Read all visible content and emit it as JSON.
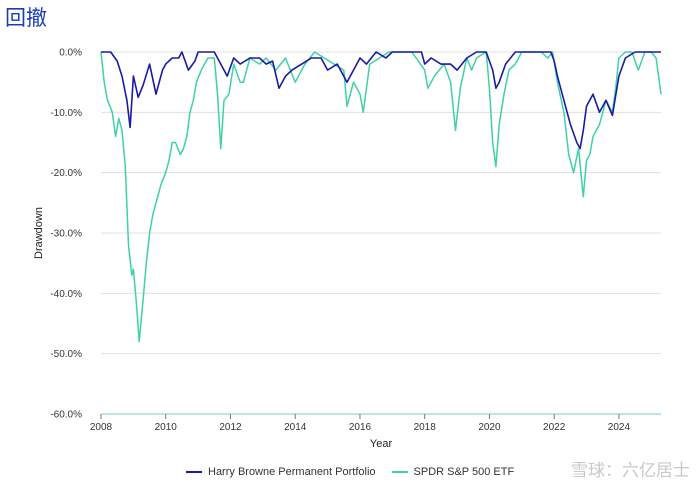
{
  "page": {
    "title": "回撤",
    "watermark": "雪球：六亿居士"
  },
  "colors": {
    "hbpp": "#1a1aa6",
    "spy": "#3fd1a6",
    "grid": "#e0e0e0",
    "axis": "#9ad9c0"
  },
  "chart_data": {
    "type": "line",
    "xlabel": "Year",
    "ylabel": "Drawdown",
    "xlim": [
      2008,
      2025.3
    ],
    "ylim": [
      -60,
      0
    ],
    "xticks": [
      "2008",
      "2010",
      "2012",
      "2014",
      "2016",
      "2018",
      "2020",
      "2022",
      "2024"
    ],
    "yticks": [
      "0.0%",
      "-10.0%",
      "-20.0%",
      "-30.0%",
      "-40.0%",
      "-50.0%",
      "-60.0%"
    ],
    "grid": true,
    "legend_position": "bottom",
    "series": [
      {
        "name": "Harry Browne Permanent Portfolio",
        "x": [
          2008.0,
          2008.3,
          2008.5,
          2008.65,
          2008.8,
          2008.9,
          2009.0,
          2009.15,
          2009.3,
          2009.5,
          2009.7,
          2009.9,
          2010.0,
          2010.2,
          2010.4,
          2010.5,
          2010.7,
          2010.9,
          2011.0,
          2011.5,
          2011.7,
          2011.9,
          2012.1,
          2012.3,
          2012.6,
          2012.9,
          2013.1,
          2013.3,
          2013.5,
          2013.7,
          2013.9,
          2014.2,
          2014.5,
          2014.8,
          2015.0,
          2015.3,
          2015.6,
          2015.8,
          2016.0,
          2016.2,
          2016.5,
          2016.8,
          2017.0,
          2017.5,
          2017.9,
          2018.0,
          2018.2,
          2018.5,
          2018.8,
          2019.0,
          2019.3,
          2019.6,
          2019.9,
          2020.1,
          2020.2,
          2020.3,
          2020.5,
          2020.8,
          2021.0,
          2021.3,
          2021.6,
          2021.9,
          2022.0,
          2022.1,
          2022.3,
          2022.5,
          2022.7,
          2022.8,
          2022.9,
          2023.0,
          2023.2,
          2023.4,
          2023.6,
          2023.8,
          2024.0,
          2024.2,
          2024.5,
          2024.8,
          2025.0,
          2025.3
        ],
        "values": [
          0,
          0,
          -1.5,
          -4,
          -8,
          -12.5,
          -4,
          -7.5,
          -5.5,
          -2,
          -7,
          -3,
          -2,
          -1,
          -1,
          0,
          -3,
          -1.5,
          0,
          0,
          -2,
          -4,
          -1,
          -2,
          -1,
          -1,
          -2,
          -1.5,
          -6,
          -4,
          -3,
          -2,
          -1,
          -1,
          -3,
          -2,
          -5,
          -3,
          -1,
          -2,
          0,
          -1,
          0,
          0,
          0,
          -2,
          -1,
          -2,
          -2,
          -3,
          -1,
          0,
          0,
          -3,
          -6,
          -5,
          -2,
          0,
          0,
          0,
          0,
          0,
          -1.5,
          -4,
          -8,
          -12,
          -15,
          -16,
          -13,
          -9,
          -7,
          -10,
          -8,
          -10.5,
          -4,
          -1,
          0,
          0,
          0,
          0
        ]
      },
      {
        "name": "SPDR S&P 500 ETF",
        "x": [
          2008.0,
          2008.1,
          2008.2,
          2008.35,
          2008.45,
          2008.55,
          2008.65,
          2008.75,
          2008.85,
          2008.95,
          2009.0,
          2009.1,
          2009.18,
          2009.3,
          2009.4,
          2009.5,
          2009.6,
          2009.7,
          2009.85,
          2010.0,
          2010.1,
          2010.2,
          2010.3,
          2010.45,
          2010.55,
          2010.65,
          2010.75,
          2010.85,
          2010.95,
          2011.1,
          2011.3,
          2011.5,
          2011.6,
          2011.7,
          2011.8,
          2011.95,
          2012.1,
          2012.3,
          2012.4,
          2012.6,
          2012.9,
          2013.1,
          2013.4,
          2013.7,
          2014.0,
          2014.3,
          2014.6,
          2014.9,
          2015.2,
          2015.5,
          2015.6,
          2015.8,
          2016.0,
          2016.1,
          2016.3,
          2016.6,
          2016.9,
          2017.2,
          2017.6,
          2018.0,
          2018.1,
          2018.3,
          2018.6,
          2018.8,
          2018.95,
          2019.1,
          2019.3,
          2019.45,
          2019.6,
          2019.9,
          2020.0,
          2020.1,
          2020.2,
          2020.3,
          2020.45,
          2020.6,
          2020.8,
          2021.0,
          2021.3,
          2021.6,
          2021.8,
          2021.95,
          2022.1,
          2022.3,
          2022.45,
          2022.6,
          2022.75,
          2022.9,
          2023.0,
          2023.1,
          2023.2,
          2023.4,
          2023.6,
          2023.8,
          2023.9,
          2024.0,
          2024.2,
          2024.4,
          2024.6,
          2024.8,
          2025.0,
          2025.15,
          2025.3
        ],
        "values": [
          0,
          -5,
          -8,
          -10,
          -14,
          -11,
          -13,
          -19,
          -32,
          -37,
          -36,
          -42,
          -48,
          -41,
          -35,
          -30,
          -27,
          -25,
          -22,
          -20,
          -18,
          -15,
          -15,
          -17,
          -16,
          -14,
          -10,
          -8,
          -5,
          -3,
          -1,
          -1,
          -7,
          -16,
          -8,
          -7,
          -2,
          -5,
          -5,
          -1,
          -2,
          -1,
          -3,
          -1,
          -5,
          -2,
          0,
          -1,
          -2,
          -3,
          -9,
          -5,
          -7,
          -10,
          -2,
          -1,
          0,
          0,
          0,
          -3,
          -6,
          -4,
          -2,
          -5,
          -13,
          -6,
          -1,
          -3,
          -1,
          0,
          -6,
          -15,
          -19,
          -12,
          -7,
          -3,
          -2,
          0,
          0,
          0,
          -1,
          0,
          -5,
          -10,
          -17,
          -20,
          -16,
          -24,
          -18,
          -17,
          -14,
          -12,
          -8,
          -10,
          -6,
          -1,
          0,
          0,
          -3,
          0,
          0,
          -1,
          -7
        ]
      }
    ]
  }
}
